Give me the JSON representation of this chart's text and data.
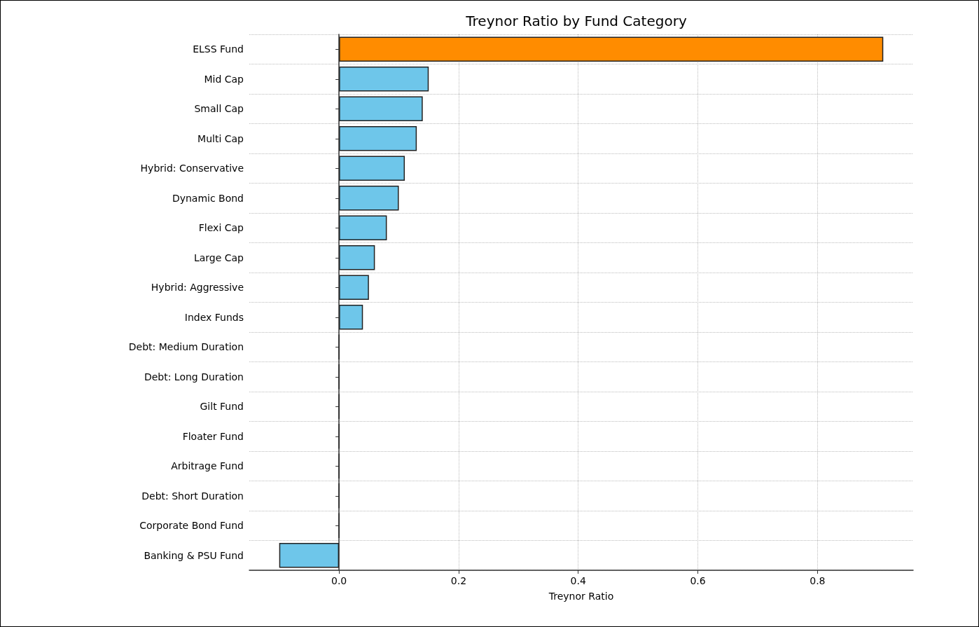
{
  "chart_data": {
    "type": "bar",
    "orientation": "horizontal",
    "title": "Treynor Ratio by Fund Category",
    "xlabel": "Treynor Ratio",
    "categories": [
      "ELSS Fund",
      "Mid Cap",
      "Small Cap",
      "Multi Cap",
      "Hybrid: Conservative",
      "Dynamic Bond",
      "Flexi Cap",
      "Large Cap",
      "Hybrid: Aggressive",
      "Index Funds",
      "Debt: Medium Duration",
      "Debt: Long Duration",
      "Gilt Fund",
      "Floater Fund",
      "Arbitrage Fund",
      "Debt: Short Duration",
      "Corporate Bond Fund",
      "Banking & PSU Fund"
    ],
    "values": [
      0.91,
      0.15,
      0.14,
      0.13,
      0.11,
      0.1,
      0.08,
      0.06,
      0.05,
      0.04,
      0,
      0,
      0,
      0,
      0,
      0,
      0,
      -0.1
    ],
    "colors": [
      "#ff8c00",
      "#6ec6ea",
      "#6ec6ea",
      "#6ec6ea",
      "#6ec6ea",
      "#6ec6ea",
      "#6ec6ea",
      "#6ec6ea",
      "#6ec6ea",
      "#6ec6ea",
      "#222222",
      "#222222",
      "#222222",
      "#222222",
      "#222222",
      "#222222",
      "#222222",
      "#6ec6ea"
    ],
    "xlim": [
      -0.15,
      0.96
    ],
    "xticks": [
      {
        "value": 0,
        "label": "0.0"
      },
      {
        "value": 0.2,
        "label": "0.2"
      },
      {
        "value": 0.4,
        "label": "0.4"
      },
      {
        "value": 0.6,
        "label": "0.6"
      },
      {
        "value": 0.8,
        "label": "0.8"
      }
    ],
    "grid": true
  }
}
